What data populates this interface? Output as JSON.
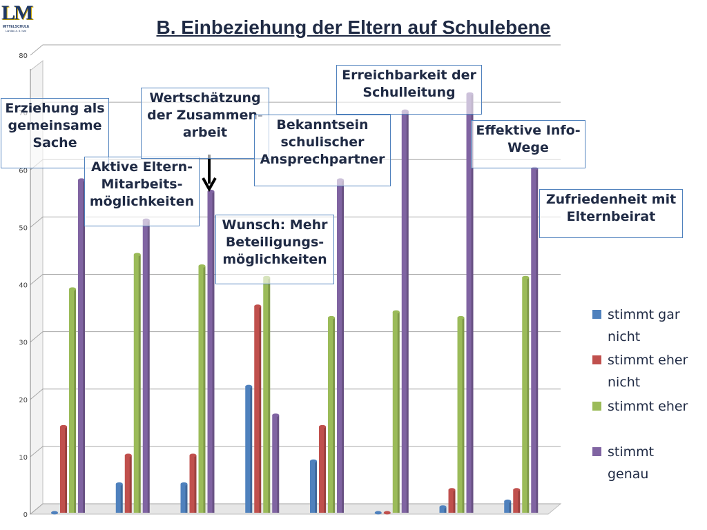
{
  "logo": {
    "letters": "LM",
    "school": "MITTELSCHULE",
    "place": "Landau a. d. Isar"
  },
  "title": "B. Einbeziehung der Eltern auf Schulebene",
  "callouts": [
    {
      "key": "erziehung",
      "text": "Erziehung als\ngemeinsame\nSache"
    },
    {
      "key": "aktive",
      "text": "Aktive Eltern-\nMitarbeits-\nmöglichkeiten"
    },
    {
      "key": "wertschaetzung",
      "text": "Wertschätzung\nder Zusammen-\narbeit"
    },
    {
      "key": "wunsch",
      "text": "Wunsch: Mehr\nBeteiligungs-\nmöglichkeiten"
    },
    {
      "key": "bekanntsein",
      "text": "Bekanntsein\nschulischer\nAnsprechpartner"
    },
    {
      "key": "erreichbarkeit",
      "text": "Erreichbarkeit der\nSchulleitung"
    },
    {
      "key": "effektive",
      "text": "Effektive Info-\nWege"
    },
    {
      "key": "zufriedenheit",
      "text": "Zufriedenheit mit\nElternbeirat"
    }
  ],
  "chart_data": {
    "type": "bar",
    "title": "B. Einbeziehung der Eltern auf Schulebene",
    "xlabel": "",
    "ylabel": "",
    "ylim": [
      0,
      80
    ],
    "yticks": [
      0,
      10,
      20,
      30,
      40,
      50,
      60,
      70,
      80
    ],
    "categories": [
      "Erziehung als gemeinsame Sache",
      "Aktive Eltern-Mitarbeitsmöglichkeiten",
      "Wertschätzung der Zusammenarbeit",
      "Wunsch: Mehr Beteiligungsmöglichkeiten",
      "Bekanntsein schulischer Ansprechpartner",
      "Erreichbarkeit der Schulleitung",
      "Effektive Info-Wege",
      "Zufriedenheit mit Elternbeirat"
    ],
    "series": [
      {
        "name": "stimmt gar nicht",
        "color": "#4f81bd",
        "values": [
          0,
          5,
          5,
          22,
          9,
          0,
          1,
          2
        ]
      },
      {
        "name": "stimmt eher nicht",
        "color": "#c0504d",
        "values": [
          15,
          10,
          10,
          36,
          15,
          0,
          4,
          4
        ]
      },
      {
        "name": "stimmt eher",
        "color": "#9bbb59",
        "values": [
          39,
          45,
          43,
          41,
          34,
          35,
          34,
          41
        ]
      },
      {
        "name": "stimmt genau",
        "color": "#8064a2",
        "values": [
          58,
          51,
          56,
          17,
          58,
          70,
          73,
          60
        ]
      }
    ],
    "grid": true,
    "legend": "right"
  }
}
